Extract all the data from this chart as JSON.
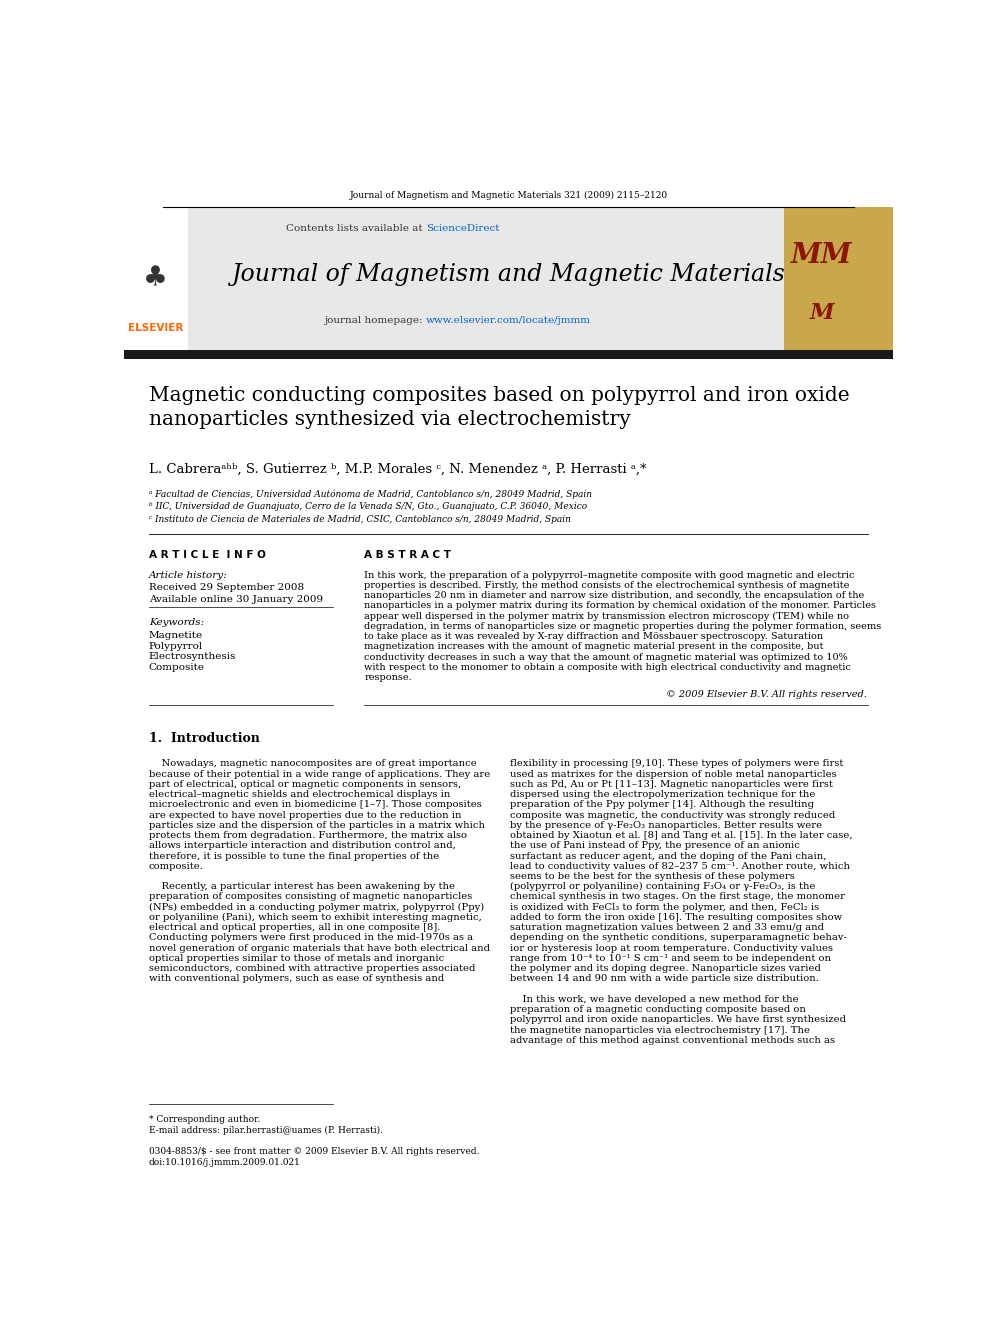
{
  "page_width": 9.92,
  "page_height": 13.23,
  "bg_color": "#ffffff",
  "journal_ref": "Journal of Magnetism and Magnetic Materials 321 (2009) 2115–2120",
  "header_bg": "#e8e8e8",
  "header_text_sciencedirect": "Contents lists available at ScienceDirect",
  "sciencedirect_color": "#0066cc",
  "journal_name": "Journal of Magnetism and Magnetic Materials",
  "journal_homepage_prefix": "journal homepage: ",
  "journal_homepage_url": "www.elsevier.com/locate/jmmm",
  "journal_homepage_color": "#0066cc",
  "elsevier_color": "#ff6600",
  "black_bar_color": "#1a1a1a",
  "article_title": "Magnetic conducting composites based on polypyrrol and iron oxide\nnanoparticles synthesized via electrochemistry",
  "authors": "L. Cabreraᵃʰᵇ, S. Gutierrez ᵇ, M.P. Morales ᶜ, N. Menendez ᵃ, P. Herrasti ᵃ,*",
  "affil_a": "ᵃ Facultad de Ciencias, Universidad Autónoma de Madrid, Cantoblanco s/n, 28049 Madrid, Spain",
  "affil_b": "ᵇ IIC, Universidad de Guanajuato, Cerro de la Venada S/N, Gto., Guanajuato, C.P. 36040, Mexico",
  "affil_c": "ᶜ Instituto de Ciencia de Materiales de Madrid, CSIC, Cantoblanco s/n, 28049 Madrid, Spain",
  "article_info_title": "A R T I C L E  I N F O",
  "abstract_title": "A B S T R A C T",
  "article_history_title": "Article history:",
  "received": "Received 29 September 2008",
  "available": "Available online 30 January 2009",
  "keywords_title": "Keywords:",
  "keywords": [
    "Magnetite",
    "Polypyrrol",
    "Electrosynthesis",
    "Composite"
  ],
  "abstract_lines": [
    "In this work, the preparation of a polypyrrol–magnetite composite with good magnetic and electric",
    "properties is described. Firstly, the method consists of the electrochemical synthesis of magnetite",
    "nanoparticles 20 nm in diameter and narrow size distribution, and secondly, the encapsulation of the",
    "nanoparticles in a polymer matrix during its formation by chemical oxidation of the monomer. Particles",
    "appear well dispersed in the polymer matrix by transmission electron microscopy (TEM) while no",
    "degradation, in terms of nanoparticles size or magnetic properties during the polymer formation, seems",
    "to take place as it was revealed by X-ray diffraction and Mössbauer spectroscopy. Saturation",
    "magnetization increases with the amount of magnetic material present in the composite, but",
    "conductivity decreases in such a way that the amount of magnetic material was optimized to 10%",
    "with respect to the monomer to obtain a composite with high electrical conductivity and magnetic",
    "response."
  ],
  "copyright": "© 2009 Elsevier B.V. All rights reserved.",
  "intro_title": "1.  Introduction",
  "intro_col1_lines": [
    "    Nowadays, magnetic nanocomposites are of great importance",
    "because of their potential in a wide range of applications. They are",
    "part of electrical, optical or magnetic components in sensors,",
    "electrical–magnetic shields and electrochemical displays in",
    "microelectronic and even in biomedicine [1–7]. Those composites",
    "are expected to have novel properties due to the reduction in",
    "particles size and the dispersion of the particles in a matrix which",
    "protects them from degradation. Furthermore, the matrix also",
    "allows interparticle interaction and distribution control and,",
    "therefore, it is possible to tune the final properties of the",
    "composite.",
    "",
    "    Recently, a particular interest has been awakening by the",
    "preparation of composites consisting of magnetic nanoparticles",
    "(NPs) embedded in a conducting polymer matrix, polypyrrol (Ppy)",
    "or polyaniline (Pani), which seem to exhibit interesting magnetic,",
    "electrical and optical properties, all in one composite [8].",
    "Conducting polymers were first produced in the mid-1970s as a",
    "novel generation of organic materials that have both electrical and",
    "optical properties similar to those of metals and inorganic",
    "semiconductors, combined with attractive properties associated",
    "with conventional polymers, such as ease of synthesis and"
  ],
  "intro_col2_lines": [
    "flexibility in processing [9,10]. These types of polymers were first",
    "used as matrixes for the dispersion of noble metal nanoparticles",
    "such as Pd, Au or Pt [11–13]. Magnetic nanoparticles were first",
    "dispersed using the electropolymerization technique for the",
    "preparation of the Ppy polymer [14]. Although the resulting",
    "composite was magnetic, the conductivity was strongly reduced",
    "by the presence of γ-Fe₂O₃ nanoparticles. Better results were",
    "obtained by Xiaotun et al. [8] and Tang et al. [15]. In the later case,",
    "the use of Pani instead of Ppy, the presence of an anionic",
    "surfactant as reducer agent, and the doping of the Pani chain,",
    "lead to conductivity values of 82–237 5 cm⁻¹. Another route, which",
    "seems to be the best for the synthesis of these polymers",
    "(polypyrrol or polyaniline) containing F₃O₄ or γ-Fe₂O₃, is the",
    "chemical synthesis in two stages. On the first stage, the monomer",
    "is oxidized with FeCl₃ to form the polymer, and then, FeCl₂ is",
    "added to form the iron oxide [16]. The resulting composites show",
    "saturation magnetization values between 2 and 33 emu/g and",
    "depending on the synthetic conditions, superparamagnetic behav-",
    "ior or hysteresis loop at room temperature. Conductivity values",
    "range from 10⁻⁴ to 10⁻¹ S cm⁻¹ and seem to be independent on",
    "the polymer and its doping degree. Nanoparticle sizes varied",
    "between 14 and 90 nm with a wide particle size distribution.",
    "",
    "    In this work, we have developed a new method for the",
    "preparation of a magnetic conducting composite based on",
    "polypyrrol and iron oxide nanoparticles. We have first synthesized",
    "the magnetite nanoparticles via electrochemistry [17]. The",
    "advantage of this method against conventional methods such as"
  ],
  "footnote_star": "* Corresponding author.",
  "footnote_email": "E-mail address: pilar.herrasti@uames (P. Herrasti).",
  "issn_line": "0304-8853/$ - see front matter © 2009 Elsevier B.V. All rights reserved.",
  "doi_line": "doi:10.1016/j.jmmm.2009.01.021"
}
